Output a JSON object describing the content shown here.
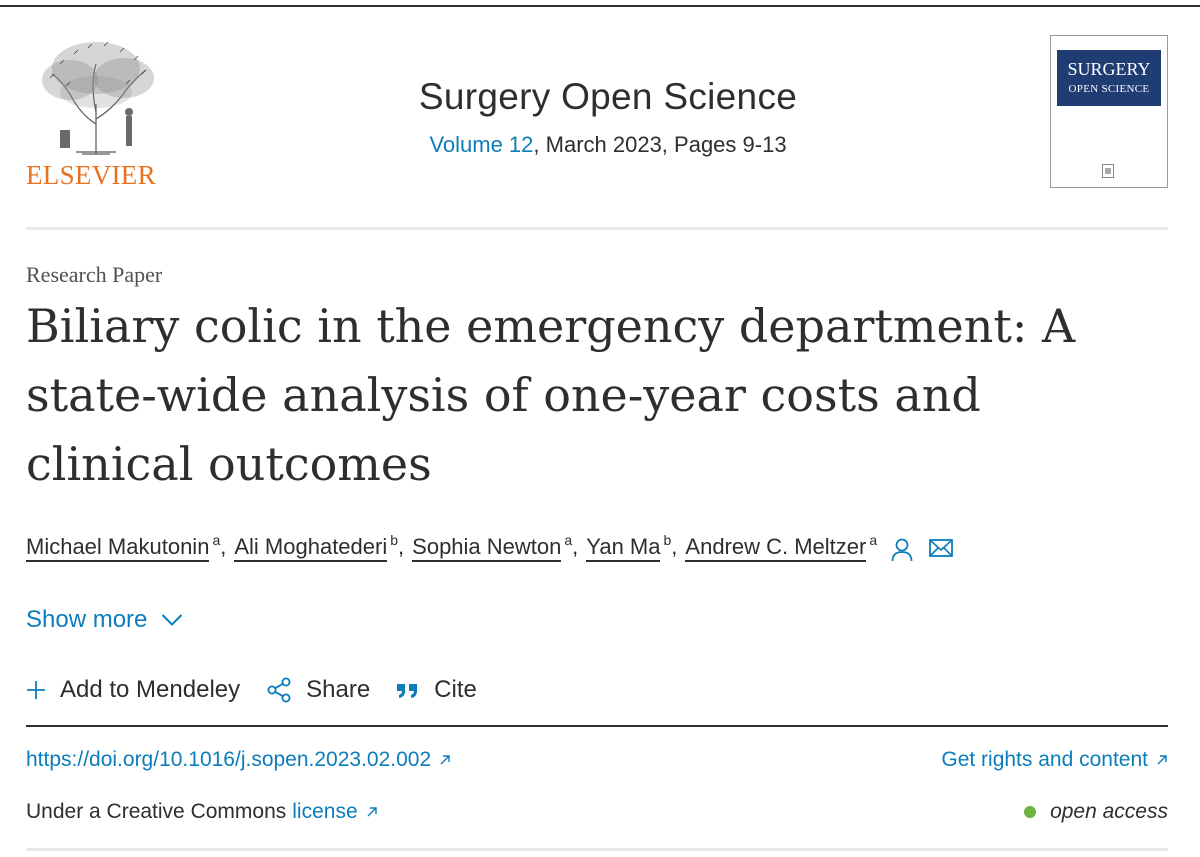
{
  "header": {
    "publisher": "ELSEVIER",
    "journal_title": "Surgery Open Science",
    "volume_label": "Volume 12",
    "issue_details": ", March 2023, Pages 9-13",
    "cover_title": "SURGERY",
    "cover_subtitle": "OPEN SCIENCE"
  },
  "article": {
    "type": "Research Paper",
    "title": "Biliary colic in the emergency department: A state-wide analysis of one-year costs and clinical outcomes",
    "authors": [
      {
        "name": "Michael Makutonin",
        "aff": "a"
      },
      {
        "name": "Ali Moghatederi",
        "aff": "b"
      },
      {
        "name": "Sophia Newton",
        "aff": "a"
      },
      {
        "name": "Yan Ma",
        "aff": "b"
      },
      {
        "name": "Andrew C. Meltzer",
        "aff": "a"
      }
    ],
    "separator": ","
  },
  "actions": {
    "show_more": "Show more",
    "add_mendeley": "Add to Mendeley",
    "share": "Share",
    "cite": "Cite"
  },
  "links": {
    "doi": "https://doi.org/10.1016/j.sopen.2023.02.002",
    "rights": "Get rights and content",
    "license_prefix": "Under a Creative Commons",
    "license_link": "license",
    "open_access": "open access"
  },
  "colors": {
    "link": "#0c7dbb",
    "publisher_orange": "#e9711c",
    "open_access_dot": "#6cb33f",
    "cover_band": "#1f3d72"
  },
  "icons": [
    "person-icon",
    "mail-icon",
    "chevron-down-icon",
    "plus-icon",
    "share-icon",
    "quote-icon",
    "external-link-icon"
  ]
}
